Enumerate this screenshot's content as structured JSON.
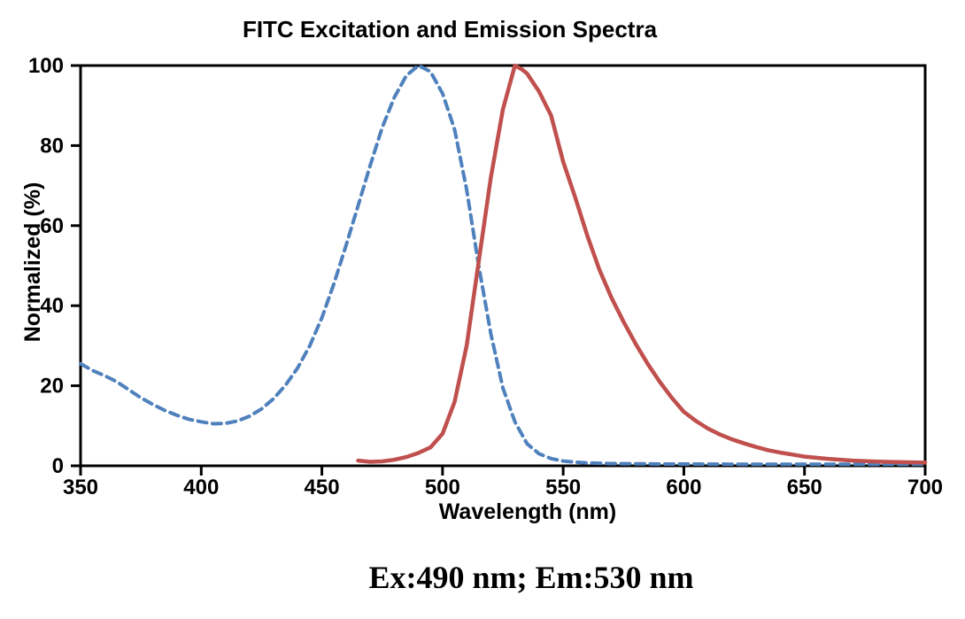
{
  "chart_data": {
    "type": "line",
    "title": "FITC Excitation and Emission Spectra",
    "xlabel": "Wavelength (nm)",
    "ylabel": "Normalized (%)",
    "caption": "Ex:490 nm; Em:530 nm",
    "xlim": [
      350,
      700
    ],
    "ylim": [
      0,
      100
    ],
    "x_ticks": [
      350,
      400,
      450,
      500,
      550,
      600,
      650,
      700
    ],
    "y_ticks": [
      0,
      20,
      40,
      60,
      80,
      100
    ],
    "grid": false,
    "legend_position": "none",
    "plot_border": true,
    "axis_color": "#000000",
    "background_color": "#ffffff",
    "excitation_peak_nm": 490,
    "emission_peak_nm": 530,
    "series": [
      {
        "name": "Excitation",
        "style": "dashed",
        "color": "#4F81BD",
        "width": 4,
        "points": [
          [
            350,
            25.5
          ],
          [
            355,
            23.8
          ],
          [
            360,
            22.5
          ],
          [
            365,
            21
          ],
          [
            370,
            19
          ],
          [
            375,
            17
          ],
          [
            380,
            15.3
          ],
          [
            385,
            13.8
          ],
          [
            390,
            12.6
          ],
          [
            395,
            11.6
          ],
          [
            400,
            11
          ],
          [
            405,
            10.5
          ],
          [
            410,
            10.6
          ],
          [
            415,
            11.2
          ],
          [
            420,
            12.4
          ],
          [
            425,
            14.2
          ],
          [
            430,
            16.8
          ],
          [
            435,
            20.2
          ],
          [
            440,
            24.5
          ],
          [
            445,
            30
          ],
          [
            450,
            37
          ],
          [
            455,
            45.5
          ],
          [
            460,
            55
          ],
          [
            465,
            65
          ],
          [
            470,
            75
          ],
          [
            475,
            84.5
          ],
          [
            480,
            92
          ],
          [
            485,
            97.5
          ],
          [
            490,
            100
          ],
          [
            495,
            98.5
          ],
          [
            500,
            93
          ],
          [
            505,
            84
          ],
          [
            510,
            69
          ],
          [
            515,
            50
          ],
          [
            520,
            33
          ],
          [
            525,
            19.5
          ],
          [
            530,
            11
          ],
          [
            535,
            5.5
          ],
          [
            540,
            3
          ],
          [
            545,
            1.8
          ],
          [
            550,
            1.2
          ],
          [
            555,
            0.9
          ],
          [
            560,
            0.7
          ],
          [
            570,
            0.55
          ],
          [
            580,
            0.5
          ],
          [
            590,
            0.45
          ],
          [
            600,
            0.45
          ],
          [
            620,
            0.4
          ],
          [
            640,
            0.4
          ],
          [
            660,
            0.4
          ],
          [
            680,
            0.4
          ],
          [
            700,
            0.4
          ]
        ]
      },
      {
        "name": "Emission",
        "style": "solid",
        "color": "#C0504D",
        "width": 4.5,
        "points": [
          [
            465,
            1.3
          ],
          [
            470,
            1.0
          ],
          [
            475,
            1.1
          ],
          [
            480,
            1.5
          ],
          [
            485,
            2.2
          ],
          [
            490,
            3.2
          ],
          [
            495,
            4.6
          ],
          [
            500,
            8
          ],
          [
            505,
            16
          ],
          [
            510,
            30
          ],
          [
            515,
            51
          ],
          [
            520,
            72
          ],
          [
            525,
            89
          ],
          [
            530,
            100
          ],
          [
            533,
            99
          ],
          [
            535,
            98
          ],
          [
            540,
            93.5
          ],
          [
            545,
            87.5
          ],
          [
            550,
            76
          ],
          [
            555,
            67
          ],
          [
            560,
            57.5
          ],
          [
            565,
            49
          ],
          [
            570,
            42
          ],
          [
            575,
            36
          ],
          [
            580,
            30.5
          ],
          [
            585,
            25.5
          ],
          [
            590,
            21
          ],
          [
            595,
            17
          ],
          [
            600,
            13.5
          ],
          [
            605,
            11.2
          ],
          [
            610,
            9.3
          ],
          [
            615,
            7.8
          ],
          [
            620,
            6.6
          ],
          [
            625,
            5.6
          ],
          [
            630,
            4.7
          ],
          [
            635,
            3.9
          ],
          [
            640,
            3.3
          ],
          [
            645,
            2.8
          ],
          [
            650,
            2.3
          ],
          [
            660,
            1.7
          ],
          [
            670,
            1.3
          ],
          [
            680,
            1.05
          ],
          [
            690,
            0.9
          ],
          [
            700,
            0.8
          ]
        ]
      }
    ]
  }
}
